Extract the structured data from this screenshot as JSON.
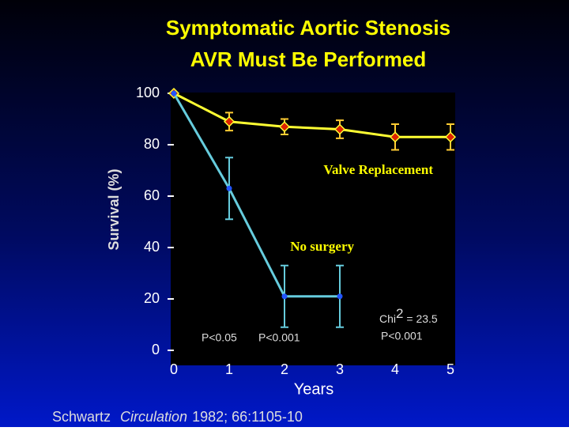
{
  "chart_data": {
    "type": "line",
    "title": [
      "Symptomatic Aortic Stenosis",
      "AVR Must Be Performed"
    ],
    "y_label": "Survival (%)",
    "x_label": "Years",
    "x": [
      0,
      1,
      2,
      3,
      4,
      5
    ],
    "series": [
      {
        "name": "Valve Replacement",
        "color": "#ffff33",
        "marker_color": "#dd2200",
        "values": [
          100,
          89,
          87,
          86,
          83,
          83
        ],
        "errors": [
          null,
          3.5,
          3,
          3.5,
          5,
          5
        ]
      },
      {
        "name": "No surgery",
        "color": "#66ccdd",
        "marker_color": "#2255ff",
        "values": [
          100,
          63,
          21,
          21,
          null,
          null
        ],
        "errors": [
          null,
          12,
          12,
          12,
          null,
          null
        ]
      }
    ],
    "xlim": [
      0,
      5
    ],
    "xticks": [
      0,
      1,
      2,
      3,
      4,
      5
    ],
    "ylim": [
      0,
      100
    ],
    "yticks": [
      0,
      20,
      40,
      60,
      80,
      100
    ],
    "annotations": [
      "P<0.05",
      "P<0.001"
    ],
    "chi": [
      "Chi",
      "2",
      " = 23.5"
    ],
    "chi_p": "P<0.001",
    "footer": [
      "Schwartz",
      "Circulation",
      "1982; 66:1105-10"
    ]
  }
}
